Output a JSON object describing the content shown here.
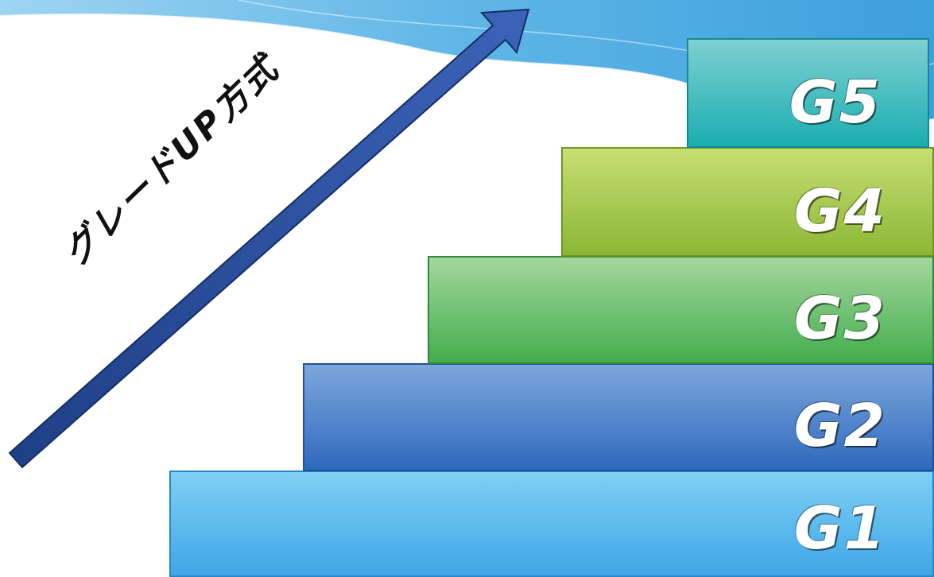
{
  "title": "",
  "arrow_label": "グレードUP方式",
  "steps": [
    {
      "label": "G1"
    },
    {
      "label": "G2"
    },
    {
      "label": "G3"
    },
    {
      "label": "G4"
    },
    {
      "label": "G5"
    }
  ],
  "colors": {
    "g1": "#3ea6e6",
    "g2": "#2f69bd",
    "g3": "#43ad4c",
    "g4": "#8bb735",
    "g5": "#1aaeb0",
    "arrow": "#2b4d9a",
    "header_wave": "#4aa9e0"
  }
}
